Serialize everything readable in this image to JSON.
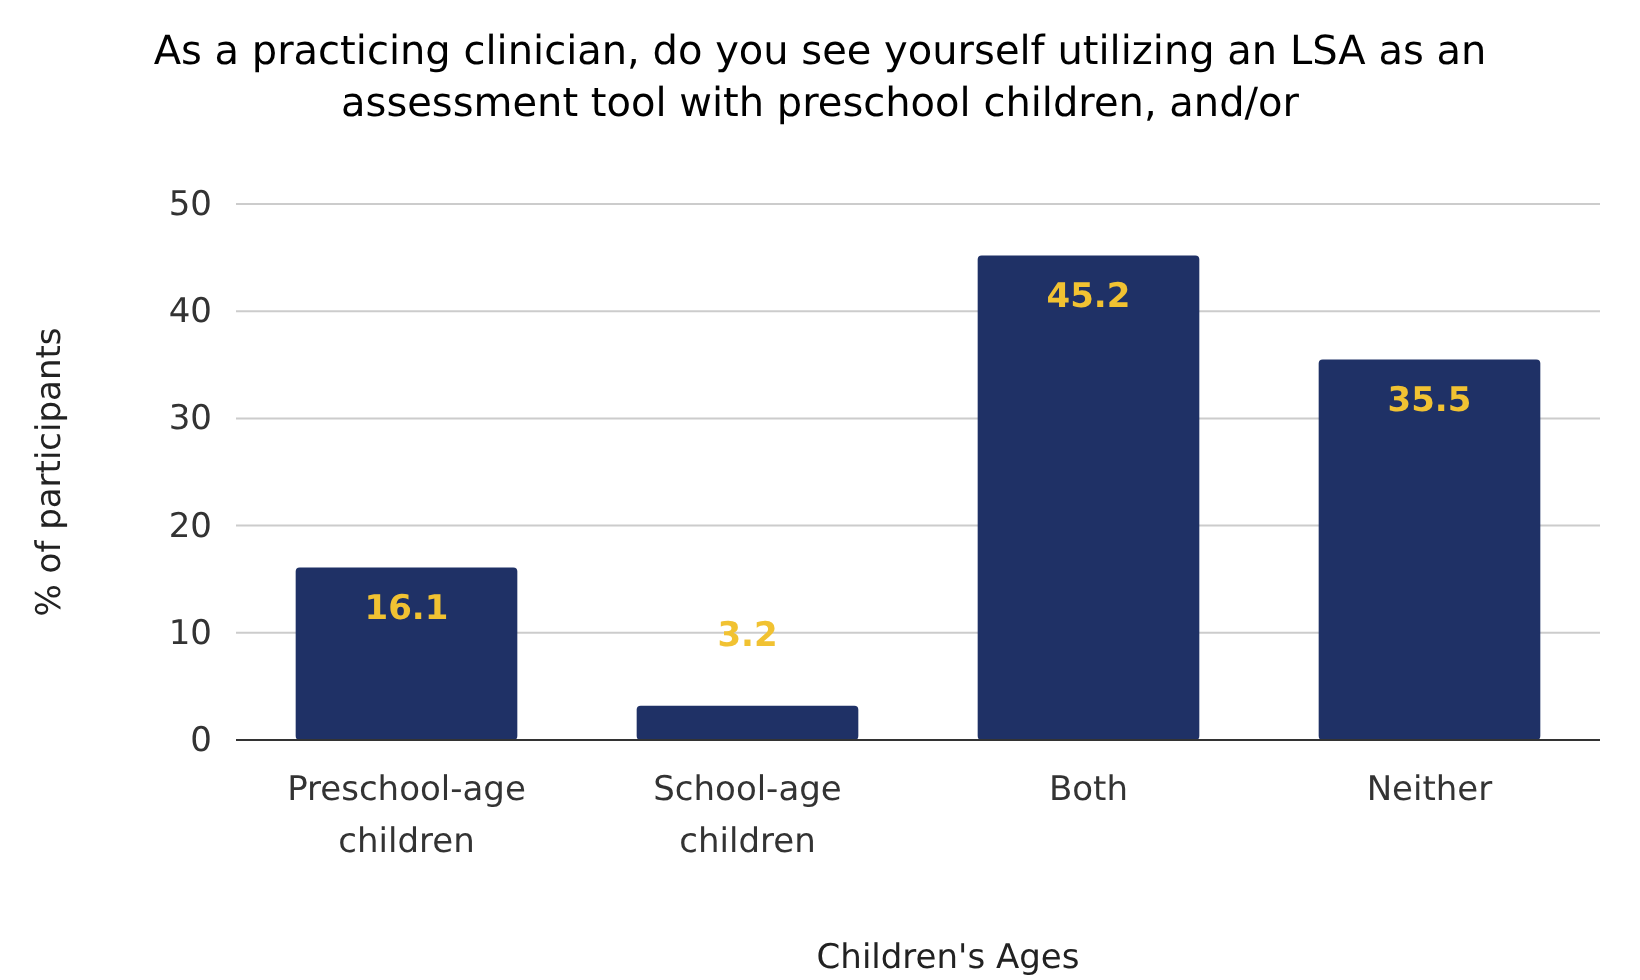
{
  "chart_data": {
    "type": "bar",
    "title": "As a practicing clinician, do you see yourself utilizing an LSA as an assessment tool with preschool children, and/or",
    "categories": [
      "Preschool-age children",
      "School-age children",
      "Both",
      "Neither"
    ],
    "values": [
      16.1,
      3.2,
      45.2,
      35.5
    ],
    "color": "#1f3166",
    "xlabel": "Children's Ages",
    "ylabel": "% of participants",
    "ylim": [
      0,
      50
    ],
    "yticks": [
      0,
      10,
      20,
      30,
      40,
      50
    ],
    "grid": "y",
    "data_labels": true
  }
}
